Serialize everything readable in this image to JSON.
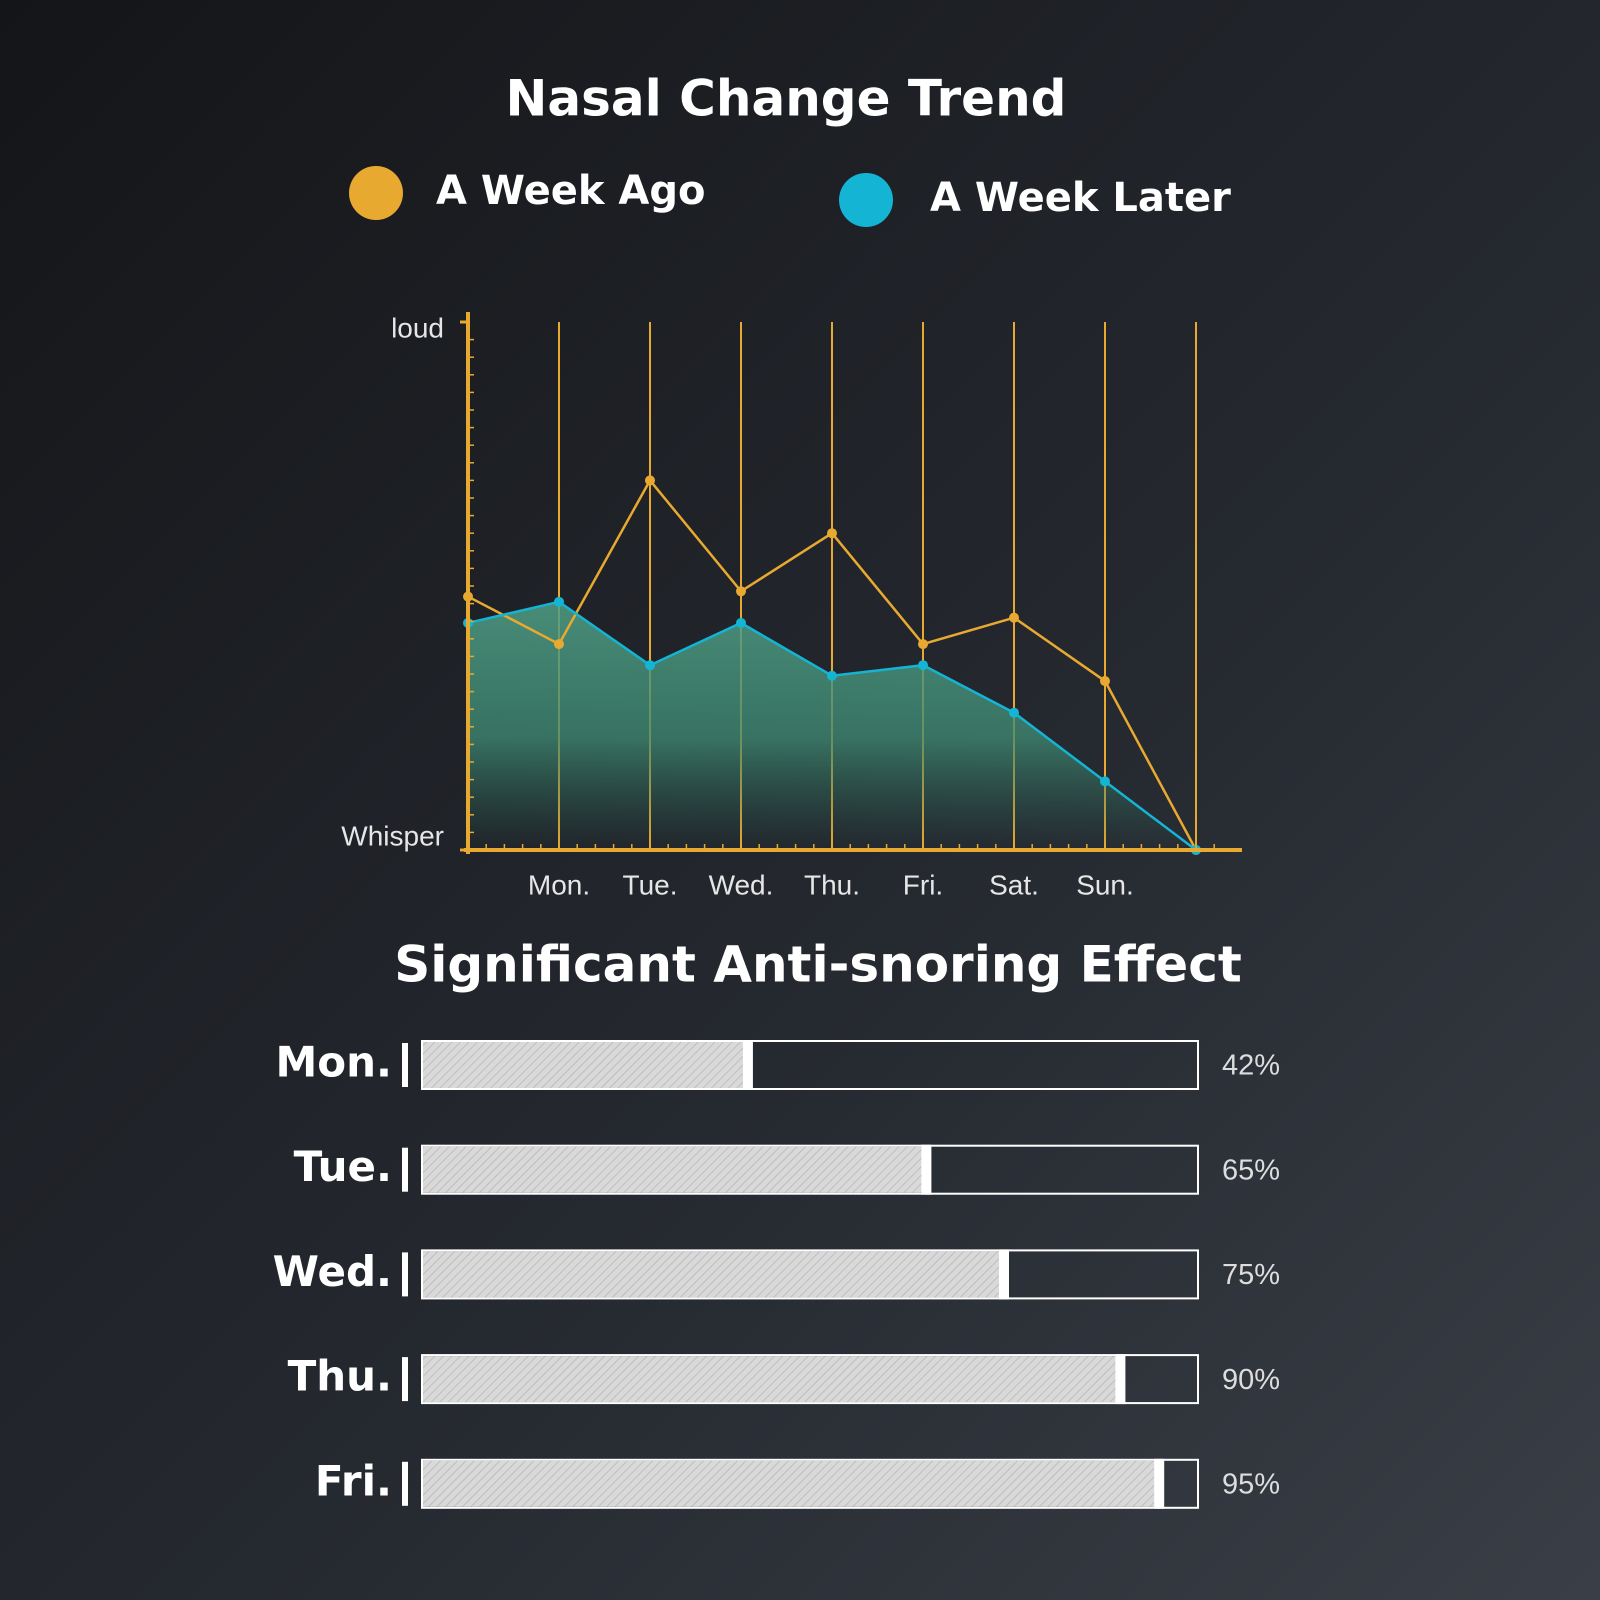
{
  "chart_data": [
    {
      "type": "area",
      "title": "Nasal Change Trend",
      "categories": [
        null,
        "Mon.",
        "Tue.",
        "Wed.",
        "Thu.",
        "Fri.",
        "Sat.",
        "Sun.",
        null
      ],
      "series": [
        {
          "name": "A Week Ago",
          "color": "#e8a930",
          "values": [
            48,
            39,
            70,
            49,
            60,
            39,
            44,
            32,
            0
          ]
        },
        {
          "name": "A Week Later",
          "color": "#14b4d4",
          "values": [
            43,
            47,
            35,
            43,
            33,
            35,
            26,
            13,
            0
          ]
        }
      ],
      "ylim": [
        0,
        100
      ],
      "yticks": [
        {
          "value": 0,
          "label": "Whisper"
        },
        {
          "value": 100,
          "label": "loud"
        }
      ]
    },
    {
      "type": "bar",
      "orientation": "horizontal",
      "title": "Significant Anti-snoring Effect",
      "categories": [
        "Mon.",
        "Tue.",
        "Wed.",
        "Thu.",
        "Fri."
      ],
      "values": [
        42,
        65,
        75,
        90,
        95
      ],
      "value_labels": [
        "42%",
        "65%",
        "75%",
        "90%",
        "95%"
      ],
      "xlim": [
        0,
        100
      ]
    }
  ]
}
